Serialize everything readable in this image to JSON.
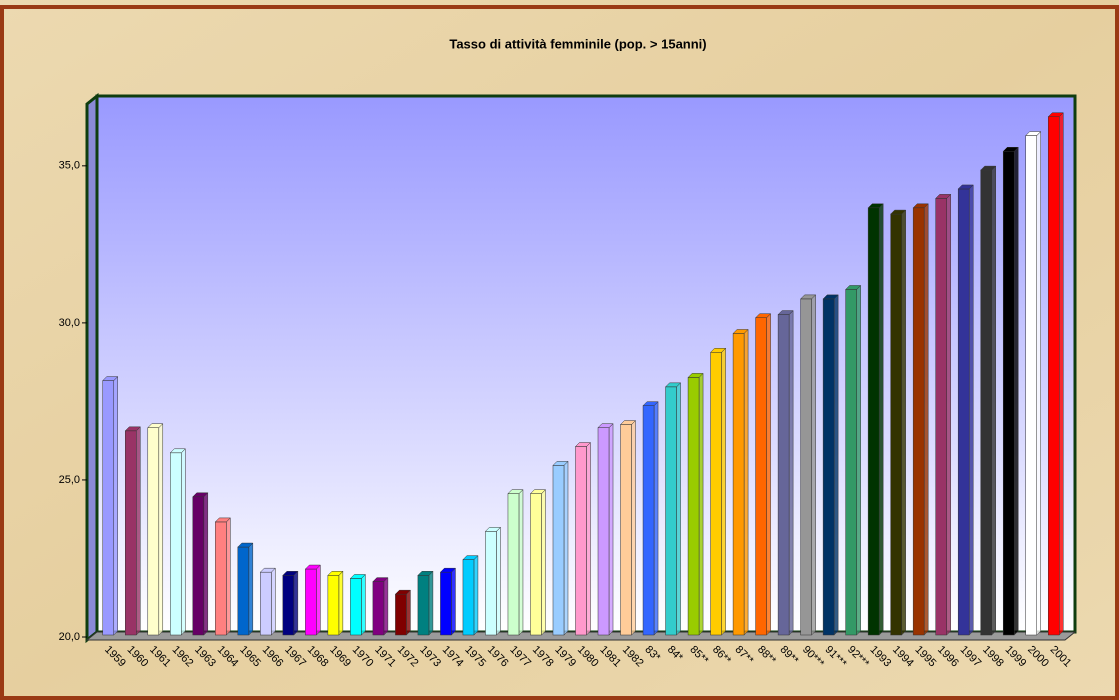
{
  "chart_data": {
    "type": "bar3d",
    "title": "Tasso di attività femminile (pop. > 15anni)",
    "categories": [
      "1959",
      "1960",
      "1961",
      "1962",
      "1963",
      "1964",
      "1965",
      "1966",
      "1967",
      "1968",
      "1969",
      "1970",
      "1971",
      "1972",
      "1973",
      "1974",
      "1975",
      "1976",
      "1977",
      "1978",
      "1979",
      "1980",
      "1981",
      "1982",
      "83*",
      "84*",
      "85**",
      "86**",
      "87**",
      "88**",
      "89**",
      "90***",
      "91***",
      "92***",
      "1993",
      "1994",
      "1995",
      "1996",
      "1997",
      "1998",
      "1999",
      "2000",
      "2001"
    ],
    "values": [
      28.1,
      26.5,
      26.6,
      25.8,
      24.4,
      23.6,
      22.8,
      22.0,
      21.9,
      22.1,
      21.9,
      21.8,
      21.7,
      21.3,
      21.9,
      22.0,
      22.4,
      23.3,
      24.5,
      24.5,
      25.4,
      26.0,
      26.6,
      26.7,
      27.3,
      27.9,
      28.2,
      29.0,
      29.6,
      30.1,
      30.2,
      30.7,
      30.7,
      31.0,
      33.6,
      33.4,
      33.6,
      33.9,
      34.2,
      34.8,
      35.4,
      35.9,
      36.5
    ],
    "colors": [
      "#9999ff",
      "#993366",
      "#ffffcc",
      "#ccffff",
      "#660066",
      "#ff8080",
      "#0066cc",
      "#ccccff",
      "#000080",
      "#ff00ff",
      "#ffff00",
      "#00ffff",
      "#800080",
      "#800000",
      "#008080",
      "#0000ff",
      "#00ccff",
      "#ccffff",
      "#ccffcc",
      "#ffff99",
      "#99ccff",
      "#ff99cc",
      "#cc99ff",
      "#ffcc99",
      "#3366ff",
      "#33cccc",
      "#99cc00",
      "#ffcc00",
      "#ff9900",
      "#ff6600",
      "#666699",
      "#969696",
      "#003366",
      "#339966",
      "#003300",
      "#333300",
      "#993300",
      "#993366",
      "#333399",
      "#333333",
      "#000000",
      "#ffffff",
      "#ff0000"
    ],
    "ylim": [
      20,
      37
    ],
    "yticks": [
      {
        "value": 20,
        "label": "20,0"
      },
      {
        "value": 25,
        "label": "25,0"
      },
      {
        "value": 30,
        "label": "30,0"
      },
      {
        "value": 35,
        "label": "35,0"
      }
    ],
    "grid": false
  }
}
